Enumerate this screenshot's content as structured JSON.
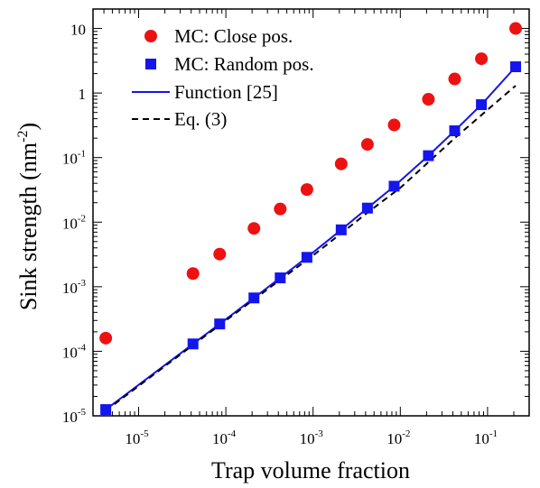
{
  "chart_data": {
    "type": "scatter",
    "xlabel": "Trap volume fraction",
    "ylabel_main": "Sink strength (nm",
    "ylabel_exp": "-2",
    "ylabel_close": ")",
    "xscale": "log",
    "yscale": "log",
    "xlim": [
      3e-06,
      0.3
    ],
    "ylim": [
      1e-05,
      20
    ],
    "grid": false,
    "legend_position": "top-left",
    "x_ticks": [
      {
        "value": 1e-05,
        "base": "10",
        "exp": "-5"
      },
      {
        "value": 0.0001,
        "base": "10",
        "exp": "-4"
      },
      {
        "value": 0.001,
        "base": "10",
        "exp": "-3"
      },
      {
        "value": 0.01,
        "base": "10",
        "exp": "-2"
      },
      {
        "value": 0.1,
        "base": "10",
        "exp": "-1"
      }
    ],
    "y_ticks": [
      {
        "value": 1e-05,
        "base": "10",
        "exp": "-5"
      },
      {
        "value": 0.0001,
        "base": "10",
        "exp": "-4"
      },
      {
        "value": 0.001,
        "base": "10",
        "exp": "-3"
      },
      {
        "value": 0.01,
        "base": "10",
        "exp": "-2"
      },
      {
        "value": 0.1,
        "base": "10",
        "exp": "-1"
      },
      {
        "value": 1,
        "base": "1",
        "exp": ""
      },
      {
        "value": 10,
        "base": "10",
        "exp": ""
      }
    ],
    "series": [
      {
        "name": "MC: Close pos.",
        "kind": "circle",
        "color": "#ee1111",
        "x": [
          4.2e-06,
          4.2e-05,
          8.5e-05,
          0.00021,
          0.00042,
          0.00085,
          0.0021,
          0.0042,
          0.0085,
          0.021,
          0.042,
          0.085,
          0.21
        ],
        "y": [
          0.00016,
          0.0016,
          0.0032,
          0.008,
          0.016,
          0.032,
          0.08,
          0.16,
          0.32,
          0.8,
          1.65,
          3.4,
          10.0
        ]
      },
      {
        "name": "MC: Random pos.",
        "kind": "square",
        "color": "#1515ee",
        "x": [
          4.2e-06,
          4.2e-05,
          8.5e-05,
          0.00021,
          0.00042,
          0.00085,
          0.0021,
          0.0042,
          0.0085,
          0.021,
          0.042,
          0.085,
          0.21
        ],
        "y": [
          1.25e-05,
          0.00013,
          0.000265,
          0.00067,
          0.00137,
          0.00285,
          0.0076,
          0.0165,
          0.036,
          0.107,
          0.26,
          0.66,
          2.55
        ]
      },
      {
        "name": "Function [25]",
        "kind": "line",
        "color": "#1515ee",
        "x": [
          4.2e-06,
          4.2e-05,
          8.5e-05,
          0.00021,
          0.00042,
          0.00085,
          0.0021,
          0.0042,
          0.0085,
          0.021,
          0.042,
          0.085,
          0.21
        ],
        "y": [
          1.25e-05,
          0.00013,
          0.000265,
          0.00067,
          0.00137,
          0.00285,
          0.0076,
          0.0165,
          0.036,
          0.107,
          0.26,
          0.66,
          2.55
        ]
      },
      {
        "name": "Eq. (3)",
        "kind": "dashed",
        "color": "#000000",
        "x": [
          4.2e-06,
          1e-05,
          4.2e-05,
          0.0001,
          0.00042,
          0.001,
          0.0042,
          0.01,
          0.042,
          0.1,
          0.21
        ],
        "y": [
          1.2e-05,
          2.9e-05,
          0.000125,
          0.0003,
          0.00128,
          0.00305,
          0.014,
          0.034,
          0.2,
          0.55,
          1.3
        ]
      }
    ]
  }
}
